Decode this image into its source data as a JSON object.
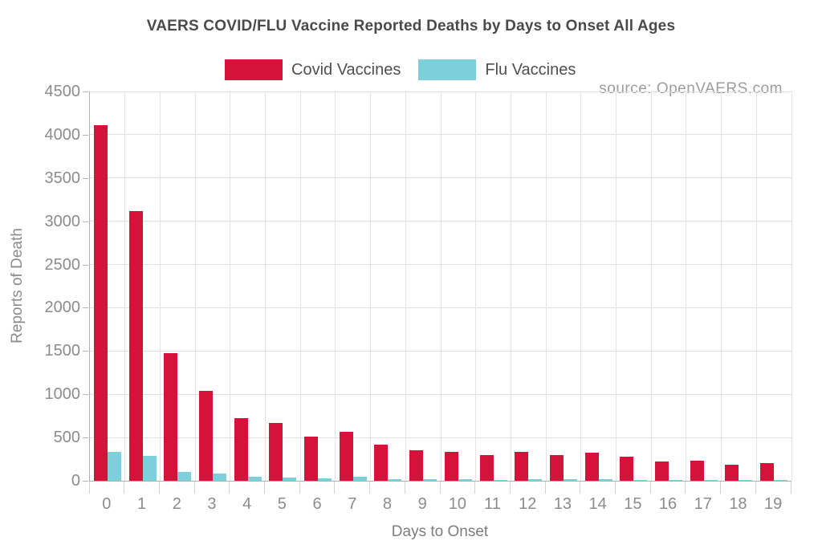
{
  "title": "VAERS COVID/FLU Vaccine Reported Deaths by Days to Onset All Ages",
  "source_label": "source: OpenVAERS.com",
  "legend": [
    {
      "label": "Covid Vaccines",
      "color": "#d5123a"
    },
    {
      "label": "Flu Vaccines",
      "color": "#7bd0dc"
    }
  ],
  "colors": {
    "covid_red": "#d5123a",
    "flu_cyan": "#7bd0dc",
    "grid": "#e0e0e0",
    "axis_text": "#8c8c8c",
    "title_text": "#4a4a4a"
  },
  "chart_data": {
    "type": "bar",
    "title": "VAERS COVID/FLU Vaccine Reported Deaths by Days to Onset All Ages",
    "xlabel": "Days to Onset",
    "ylabel": "Reports of Death",
    "categories": [
      "0",
      "1",
      "2",
      "3",
      "4",
      "5",
      "6",
      "7",
      "8",
      "9",
      "10",
      "11",
      "12",
      "13",
      "14",
      "15",
      "16",
      "17",
      "18",
      "19"
    ],
    "series": [
      {
        "name": "Covid Vaccines",
        "color": "#d5123a",
        "values": [
          4110,
          3120,
          1480,
          1040,
          720,
          665,
          515,
          570,
          415,
          355,
          330,
          295,
          330,
          295,
          325,
          280,
          225,
          230,
          190,
          200
        ]
      },
      {
        "name": "Flu Vaccines",
        "color": "#7bd0dc",
        "values": [
          335,
          290,
          105,
          80,
          45,
          35,
          25,
          45,
          22,
          22,
          15,
          14,
          15,
          18,
          20,
          12,
          14,
          12,
          10,
          10
        ]
      }
    ],
    "ylim": [
      0,
      4500
    ],
    "ytick_step": 500,
    "y_tick_labels": [
      "0",
      "500",
      "1000",
      "1500",
      "2000",
      "2500",
      "3000",
      "3500",
      "4000",
      "4500"
    ],
    "grid": true,
    "legend_position": "top"
  }
}
